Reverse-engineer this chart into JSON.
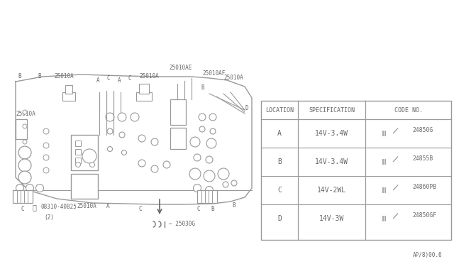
{
  "bg_color": "#ffffff",
  "page_label": "AP/8)00.6",
  "table": {
    "rows": [
      {
        "loc": "A",
        "spec": "14V-3.4W",
        "code": "24850G"
      },
      {
        "loc": "B",
        "spec": "14V-3.4W",
        "code": "24855B"
      },
      {
        "loc": "C",
        "spec": "14V-2WL",
        "code": "24860PB"
      },
      {
        "loc": "D",
        "spec": "14V-3W",
        "code": "24850GF"
      }
    ]
  },
  "lc": "#999999",
  "tc": "#666666"
}
